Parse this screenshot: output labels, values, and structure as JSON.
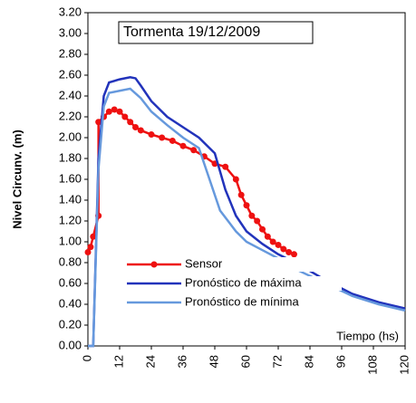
{
  "chart_data": {
    "type": "line",
    "title": "Tormenta 19/12/2009",
    "ylabel": "Nivel Circunv. (m)",
    "xlabel": "Tiempo (hs)",
    "xlim": [
      0,
      120
    ],
    "xticks": [
      0,
      12,
      24,
      36,
      48,
      60,
      72,
      84,
      96,
      108,
      120
    ],
    "ylim": [
      0,
      3.2
    ],
    "yticks": [
      {
        "value": 0,
        "label": "0.00"
      },
      {
        "value": 0.2,
        "label": "0.20"
      },
      {
        "value": 0.4,
        "label": "0.40"
      },
      {
        "value": 0.6,
        "label": "0.60"
      },
      {
        "value": 0.8,
        "label": "0.80"
      },
      {
        "value": 1,
        "label": "1.00"
      },
      {
        "value": 1.2,
        "label": "1.20"
      },
      {
        "value": 1.4,
        "label": "1.40"
      },
      {
        "value": 1.6,
        "label": "1.60"
      },
      {
        "value": 1.8,
        "label": "1.80"
      },
      {
        "value": 2,
        "label": "2.00"
      },
      {
        "value": 2.2,
        "label": "2.20"
      },
      {
        "value": 2.4,
        "label": "2.40"
      },
      {
        "value": 2.6,
        "label": "2.60"
      },
      {
        "value": 2.8,
        "label": "2.80"
      },
      {
        "value": 3,
        "label": "3.00"
      },
      {
        "value": 3.2,
        "label": "3.20"
      }
    ],
    "grid": false,
    "legend": "lower left",
    "series": [
      {
        "name": "Sensor",
        "color": "#ee1111",
        "marker": "circle",
        "x": [
          0,
          1,
          2,
          4,
          4,
          6,
          8,
          10,
          12,
          14,
          16,
          18,
          20,
          24,
          28,
          32,
          36,
          40,
          44,
          48,
          52,
          56,
          58,
          60,
          62,
          64,
          66,
          68,
          70,
          72,
          74,
          76,
          78
        ],
        "values": [
          0.9,
          0.95,
          1.05,
          1.25,
          2.15,
          2.2,
          2.25,
          2.27,
          2.25,
          2.2,
          2.15,
          2.1,
          2.07,
          2.03,
          2.0,
          1.97,
          1.92,
          1.88,
          1.82,
          1.75,
          1.72,
          1.6,
          1.45,
          1.35,
          1.25,
          1.2,
          1.12,
          1.05,
          1.0,
          0.97,
          0.93,
          0.9,
          0.88
        ]
      },
      {
        "name": "Pronóstico de máxima",
        "color": "#2233bb",
        "x": [
          0,
          2,
          4,
          6,
          8,
          12,
          16,
          18,
          20,
          24,
          30,
          36,
          42,
          48,
          52,
          56,
          60,
          66,
          72,
          80,
          90,
          100,
          110,
          120
        ],
        "values": [
          0,
          0,
          1.8,
          2.4,
          2.53,
          2.56,
          2.58,
          2.57,
          2.5,
          2.35,
          2.2,
          2.1,
          2.0,
          1.85,
          1.5,
          1.25,
          1.1,
          0.98,
          0.88,
          0.78,
          0.63,
          0.5,
          0.42,
          0.36
        ]
      },
      {
        "name": "Pronóstico de mínima",
        "color": "#6699dd",
        "x": [
          0,
          2,
          4,
          6,
          8,
          12,
          16,
          20,
          24,
          30,
          36,
          42,
          46,
          50,
          56,
          60,
          66,
          72,
          80,
          90,
          100,
          110,
          120
        ],
        "values": [
          0,
          0,
          1.7,
          2.3,
          2.43,
          2.45,
          2.47,
          2.38,
          2.25,
          2.12,
          2.0,
          1.9,
          1.6,
          1.3,
          1.1,
          1.0,
          0.92,
          0.84,
          0.72,
          0.6,
          0.48,
          0.4,
          0.34
        ]
      }
    ]
  }
}
